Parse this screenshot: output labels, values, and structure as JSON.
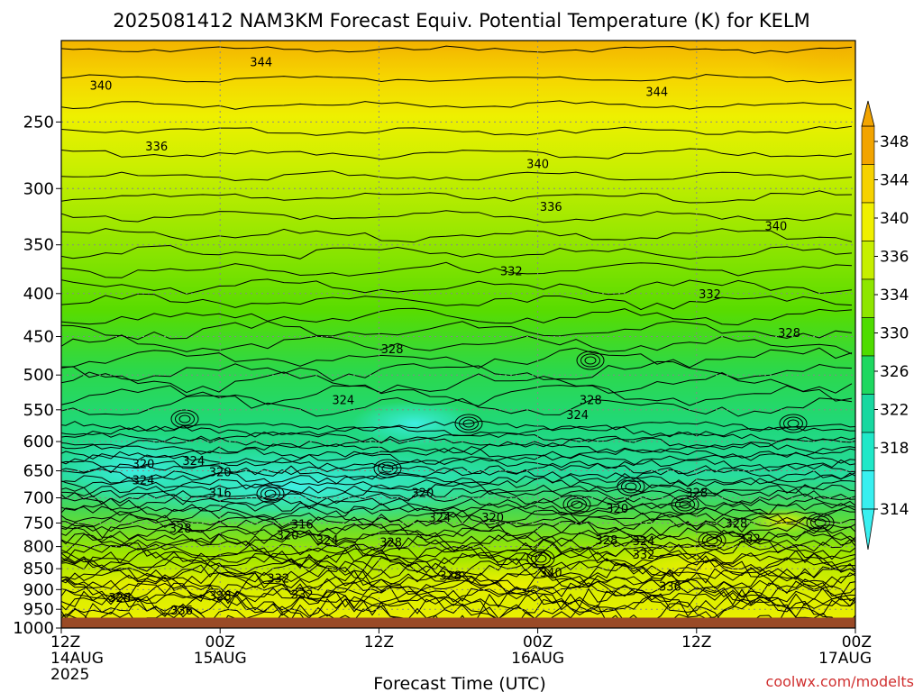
{
  "chart_data": {
    "type": "heatmap",
    "title": "2025081412 NAM3KM Forecast Equiv. Potential Temperature (K) for KELM",
    "xlabel": "Forecast Time (UTC)",
    "ylabel": "",
    "x_ticks": [
      {
        "hour": 0,
        "label": "12Z",
        "sub1": "14AUG",
        "sub2": "2025"
      },
      {
        "hour": 12,
        "label": "00Z",
        "sub1": "15AUG",
        "sub2": ""
      },
      {
        "hour": 24,
        "label": "12Z",
        "sub1": "",
        "sub2": ""
      },
      {
        "hour": 36,
        "label": "00Z",
        "sub1": "16AUG",
        "sub2": ""
      },
      {
        "hour": 48,
        "label": "12Z",
        "sub1": "",
        "sub2": ""
      },
      {
        "hour": 60,
        "label": "00Z",
        "sub1": "17AUG",
        "sub2": ""
      }
    ],
    "xlim": [
      0,
      60
    ],
    "y_ticks": [
      250,
      300,
      350,
      400,
      450,
      500,
      550,
      600,
      650,
      700,
      750,
      800,
      850,
      900,
      950,
      1000
    ],
    "ylim": [
      200,
      1000
    ],
    "y_scale": "log",
    "underground_below_hpa": 972,
    "colorbar": {
      "labels": [
        348,
        344,
        340,
        336,
        334,
        330,
        326,
        322,
        318,
        314
      ],
      "colors": [
        "#f2a400",
        "#f6d200",
        "#f0f000",
        "#c6ef00",
        "#8ee600",
        "#4edc00",
        "#1ed860",
        "#18d8a0",
        "#20e8c8",
        "#38f0f0"
      ],
      "extend": "both"
    },
    "contour_labels": [
      {
        "value": "344",
        "hour": 15.1,
        "hpa": 212
      },
      {
        "value": "340",
        "hour": 3.0,
        "hpa": 226
      },
      {
        "value": "344",
        "hour": 45.0,
        "hpa": 230
      },
      {
        "value": "336",
        "hour": 7.2,
        "hpa": 267
      },
      {
        "value": "340",
        "hour": 36.0,
        "hpa": 280
      },
      {
        "value": "336",
        "hour": 37.0,
        "hpa": 315
      },
      {
        "value": "340",
        "hour": 54.0,
        "hpa": 332
      },
      {
        "value": "332",
        "hour": 34.0,
        "hpa": 376
      },
      {
        "value": "332",
        "hour": 49.0,
        "hpa": 400
      },
      {
        "value": "328",
        "hour": 55.0,
        "hpa": 445
      },
      {
        "value": "328",
        "hour": 25.0,
        "hpa": 465
      },
      {
        "value": "324",
        "hour": 21.3,
        "hpa": 535
      },
      {
        "value": "328",
        "hour": 40.0,
        "hpa": 535
      },
      {
        "value": "324",
        "hour": 39.0,
        "hpa": 557
      },
      {
        "value": "320",
        "hour": 6.2,
        "hpa": 637
      },
      {
        "value": "324",
        "hour": 10.0,
        "hpa": 632
      },
      {
        "value": "320",
        "hour": 12.0,
        "hpa": 652
      },
      {
        "value": "324",
        "hour": 6.2,
        "hpa": 666
      },
      {
        "value": "316",
        "hour": 12.0,
        "hpa": 690
      },
      {
        "value": "320",
        "hour": 27.3,
        "hpa": 690
      },
      {
        "value": "328",
        "hour": 48.0,
        "hpa": 690
      },
      {
        "value": "320",
        "hour": 42.0,
        "hpa": 720
      },
      {
        "value": "324",
        "hour": 28.6,
        "hpa": 738
      },
      {
        "value": "320",
        "hour": 32.6,
        "hpa": 738
      },
      {
        "value": "316",
        "hour": 18.2,
        "hpa": 752
      },
      {
        "value": "328",
        "hour": 9.0,
        "hpa": 760
      },
      {
        "value": "328",
        "hour": 51.0,
        "hpa": 750
      },
      {
        "value": "320",
        "hour": 17.1,
        "hpa": 775
      },
      {
        "value": "324",
        "hour": 20.1,
        "hpa": 785
      },
      {
        "value": "328",
        "hour": 24.9,
        "hpa": 790
      },
      {
        "value": "328",
        "hour": 41.2,
        "hpa": 785
      },
      {
        "value": "324",
        "hour": 44.0,
        "hpa": 787
      },
      {
        "value": "332",
        "hour": 52.0,
        "hpa": 782
      },
      {
        "value": "332",
        "hour": 44.0,
        "hpa": 817
      },
      {
        "value": "340",
        "hour": 37.0,
        "hpa": 858
      },
      {
        "value": "328",
        "hour": 29.4,
        "hpa": 866
      },
      {
        "value": "332",
        "hour": 16.4,
        "hpa": 872
      },
      {
        "value": "336",
        "hour": 46.0,
        "hpa": 892
      },
      {
        "value": "332",
        "hour": 18.2,
        "hpa": 912
      },
      {
        "value": "328",
        "hour": 4.4,
        "hpa": 920
      },
      {
        "value": "328",
        "hour": 12.0,
        "hpa": 915
      },
      {
        "value": "336",
        "hour": 9.1,
        "hpa": 952
      }
    ]
  },
  "credit": "coolwx.com/modelts"
}
